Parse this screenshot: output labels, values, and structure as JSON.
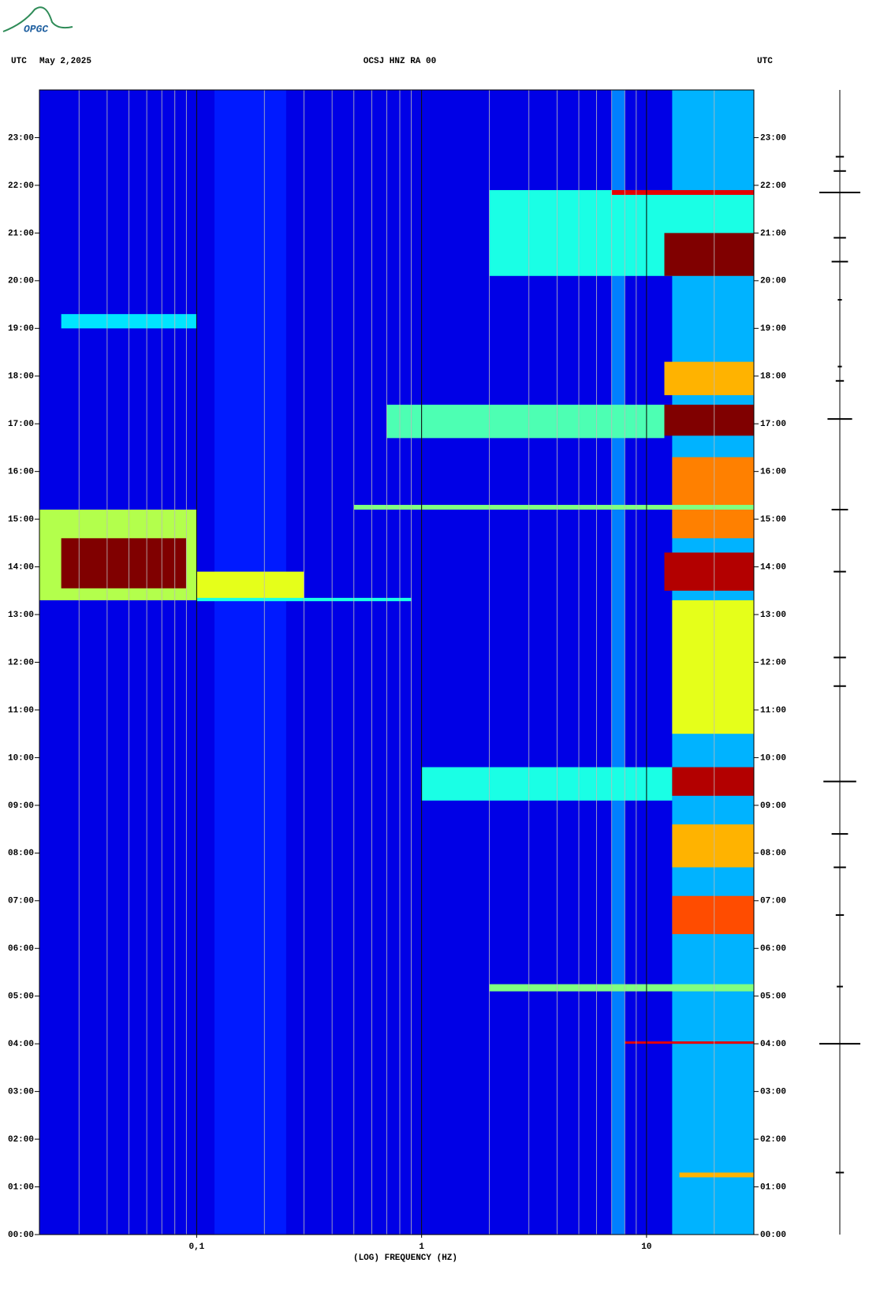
{
  "chart_data": {
    "type": "spectrogram",
    "logo": "OPGC",
    "header_left_zone": "UTC",
    "date": "May 2,2025",
    "title": "OCSJ HNZ RA 00",
    "header_right_zone": "UTC",
    "xlabel": "(LOG) FREQUENCY (HZ)",
    "xscale": "log",
    "xlim": [
      0.02,
      30
    ],
    "xticks": [
      {
        "value": 0.1,
        "label": "0,1"
      },
      1,
      10
    ],
    "xgrid": [
      0.03,
      0.04,
      0.05,
      0.06,
      0.07,
      0.08,
      0.09,
      0.1,
      0.2,
      0.3,
      0.4,
      0.5,
      0.6,
      0.7,
      0.8,
      0.9,
      1,
      2,
      3,
      4,
      5,
      6,
      7,
      8,
      9,
      10,
      20
    ],
    "ylim": [
      0,
      24
    ],
    "yticks": [
      {
        "value": 0,
        "label": "00:00"
      },
      {
        "value": 1,
        "label": "01:00"
      },
      {
        "value": 2,
        "label": "02:00"
      },
      {
        "value": 3,
        "label": "03:00"
      },
      {
        "value": 4,
        "label": "04:00"
      },
      {
        "value": 5,
        "label": "05:00"
      },
      {
        "value": 6,
        "label": "06:00"
      },
      {
        "value": 7,
        "label": "07:00"
      },
      {
        "value": 8,
        "label": "08:00"
      },
      {
        "value": 9,
        "label": "09:00"
      },
      {
        "value": 10,
        "label": "10:00"
      },
      {
        "value": 11,
        "label": "11:00"
      },
      {
        "value": 12,
        "label": "12:00"
      },
      {
        "value": 13,
        "label": "13:00"
      },
      {
        "value": 14,
        "label": "14:00"
      },
      {
        "value": 15,
        "label": "15:00"
      },
      {
        "value": 16,
        "label": "16:00"
      },
      {
        "value": 17,
        "label": "17:00"
      },
      {
        "value": 18,
        "label": "18:00"
      },
      {
        "value": 19,
        "label": "19:00"
      },
      {
        "value": 20,
        "label": "20:00"
      },
      {
        "value": 21,
        "label": "21:00"
      },
      {
        "value": 22,
        "label": "22:00"
      },
      {
        "value": 23,
        "label": "23:00"
      }
    ],
    "zlim": [
      0,
      1
    ],
    "background_level": 0.1,
    "events": [
      {
        "t0": 0,
        "t1": 24,
        "f0": 13,
        "f1": 30,
        "level": 0.3
      },
      {
        "t0": 0,
        "t1": 24,
        "f0": 7,
        "f1": 8,
        "level": 0.25
      },
      {
        "t0": 0,
        "t1": 24,
        "f0": 0.12,
        "f1": 0.25,
        "level": 0.15
      },
      {
        "t0": 13.3,
        "t1": 15.2,
        "f0": 0.02,
        "f1": 0.1,
        "level": 0.55
      },
      {
        "t0": 13.55,
        "t1": 14.6,
        "f0": 0.025,
        "f1": 0.09,
        "level": 1
      },
      {
        "t0": 13.3,
        "t1": 13.9,
        "f0": 0.1,
        "f1": 0.3,
        "level": 0.6
      },
      {
        "t0": 13.28,
        "t1": 13.35,
        "f0": 0.1,
        "f1": 0.9,
        "level": 0.4
      },
      {
        "t0": 19,
        "t1": 19.3,
        "f0": 0.025,
        "f1": 0.1,
        "level": 0.35
      },
      {
        "t0": 20.1,
        "t1": 21.9,
        "f0": 2,
        "f1": 30,
        "level": 0.4
      },
      {
        "t0": 20.1,
        "t1": 21,
        "f0": 12,
        "f1": 30,
        "level": 1
      },
      {
        "t0": 21.8,
        "t1": 21.9,
        "f0": 7,
        "f1": 30,
        "level": 0.9
      },
      {
        "t0": 16.7,
        "t1": 17.4,
        "f0": 0.7,
        "f1": 12,
        "level": 0.45
      },
      {
        "t0": 16.75,
        "t1": 17.4,
        "f0": 12,
        "f1": 30,
        "level": 1
      },
      {
        "t0": 17.6,
        "t1": 18.3,
        "f0": 12,
        "f1": 30,
        "level": 0.7
      },
      {
        "t0": 14.6,
        "t1": 16.3,
        "f0": 13,
        "f1": 30,
        "level": 0.75
      },
      {
        "t0": 15.2,
        "t1": 15.3,
        "f0": 0.5,
        "f1": 30,
        "level": 0.5
      },
      {
        "t0": 13.5,
        "t1": 14.3,
        "f0": 12,
        "f1": 30,
        "level": 0.95
      },
      {
        "t0": 10.5,
        "t1": 13.3,
        "f0": 13,
        "f1": 30,
        "level": 0.6
      },
      {
        "t0": 9.1,
        "t1": 9.8,
        "f0": 1,
        "f1": 13,
        "level": 0.4
      },
      {
        "t0": 9.2,
        "t1": 9.8,
        "f0": 13,
        "f1": 30,
        "level": 0.95
      },
      {
        "t0": 7.7,
        "t1": 8.6,
        "f0": 13,
        "f1": 30,
        "level": 0.7
      },
      {
        "t0": 6.3,
        "t1": 7.1,
        "f0": 13,
        "f1": 30,
        "level": 0.8
      },
      {
        "t0": 5.1,
        "t1": 5.25,
        "f0": 2,
        "f1": 30,
        "level": 0.5
      },
      {
        "t0": 4,
        "t1": 4.05,
        "f0": 8,
        "f1": 30,
        "level": 0.9
      },
      {
        "t0": 1.2,
        "t1": 1.3,
        "f0": 14,
        "f1": 30,
        "level": 0.7
      }
    ],
    "trace": {
      "times": [
        22.6,
        22.3,
        21.85,
        20.9,
        20.4,
        19.6,
        18.2,
        17.9,
        17.1,
        15.2,
        13.9,
        12.1,
        11.5,
        9.5,
        8.4,
        7.7,
        6.7,
        5.2,
        4,
        1.3
      ],
      "amplitudes": [
        0.2,
        0.3,
        1,
        0.3,
        0.4,
        0.1,
        0.1,
        0.2,
        0.6,
        0.4,
        0.3,
        0.3,
        0.3,
        0.8,
        0.4,
        0.3,
        0.2,
        0.15,
        1,
        0.2
      ]
    }
  }
}
